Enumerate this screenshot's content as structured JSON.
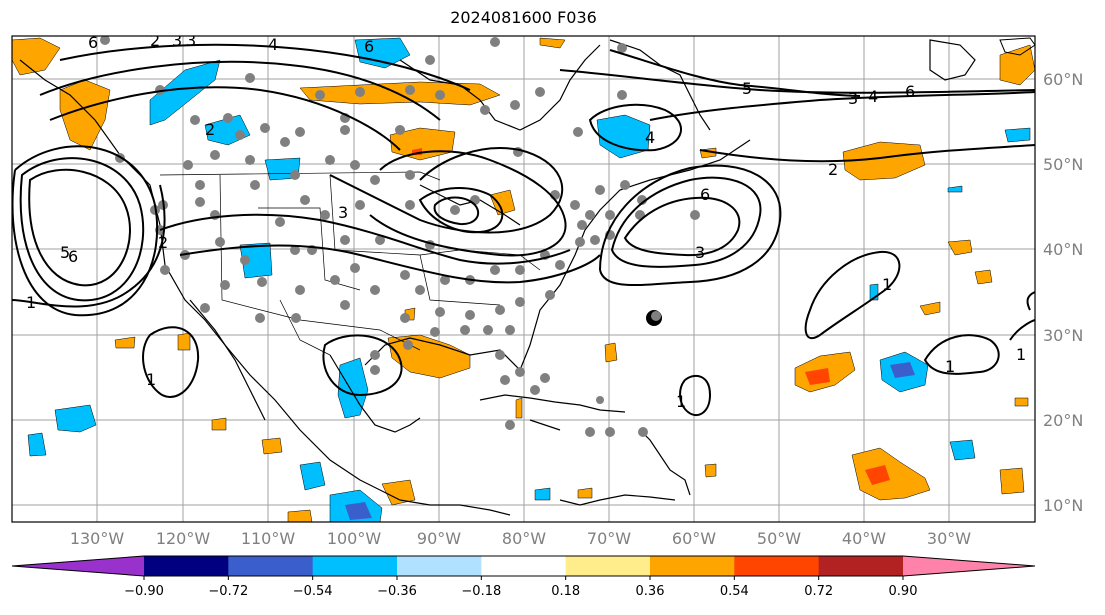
{
  "title": "2024081600 F036",
  "map": {
    "lon_labels": [
      "130°W",
      "120°W",
      "110°W",
      "100°W",
      "90°W",
      "80°W",
      "70°W",
      "60°W",
      "50°W",
      "40°W",
      "30°W"
    ],
    "lat_labels": [
      "60°N",
      "50°N",
      "40°N",
      "30°N",
      "20°N",
      "10°N"
    ],
    "contour_labels": [
      "6",
      "2",
      "3",
      "4",
      "6",
      "5",
      "3",
      "4",
      "6",
      "4",
      "2",
      "2",
      "3",
      "6",
      "3",
      "1",
      "1",
      "1",
      "1",
      "1",
      "5",
      "6",
      "2",
      "3",
      "1"
    ]
  },
  "colorbar": {
    "tick_labels": [
      "−0.90",
      "−0.72",
      "−0.54",
      "−0.36",
      "−0.18",
      "0.18",
      "0.36",
      "0.54",
      "0.72",
      "0.90"
    ],
    "colors": [
      "#9932cc",
      "#000080",
      "#3a5fcd",
      "#00bfff",
      "#b0e2ff",
      "#ffffff",
      "#ffec8b",
      "#ffa500",
      "#ff4500",
      "#b22222",
      "#ff82ab"
    ],
    "extend_low": "#9932cc",
    "extend_high": "#ff82ab"
  }
}
